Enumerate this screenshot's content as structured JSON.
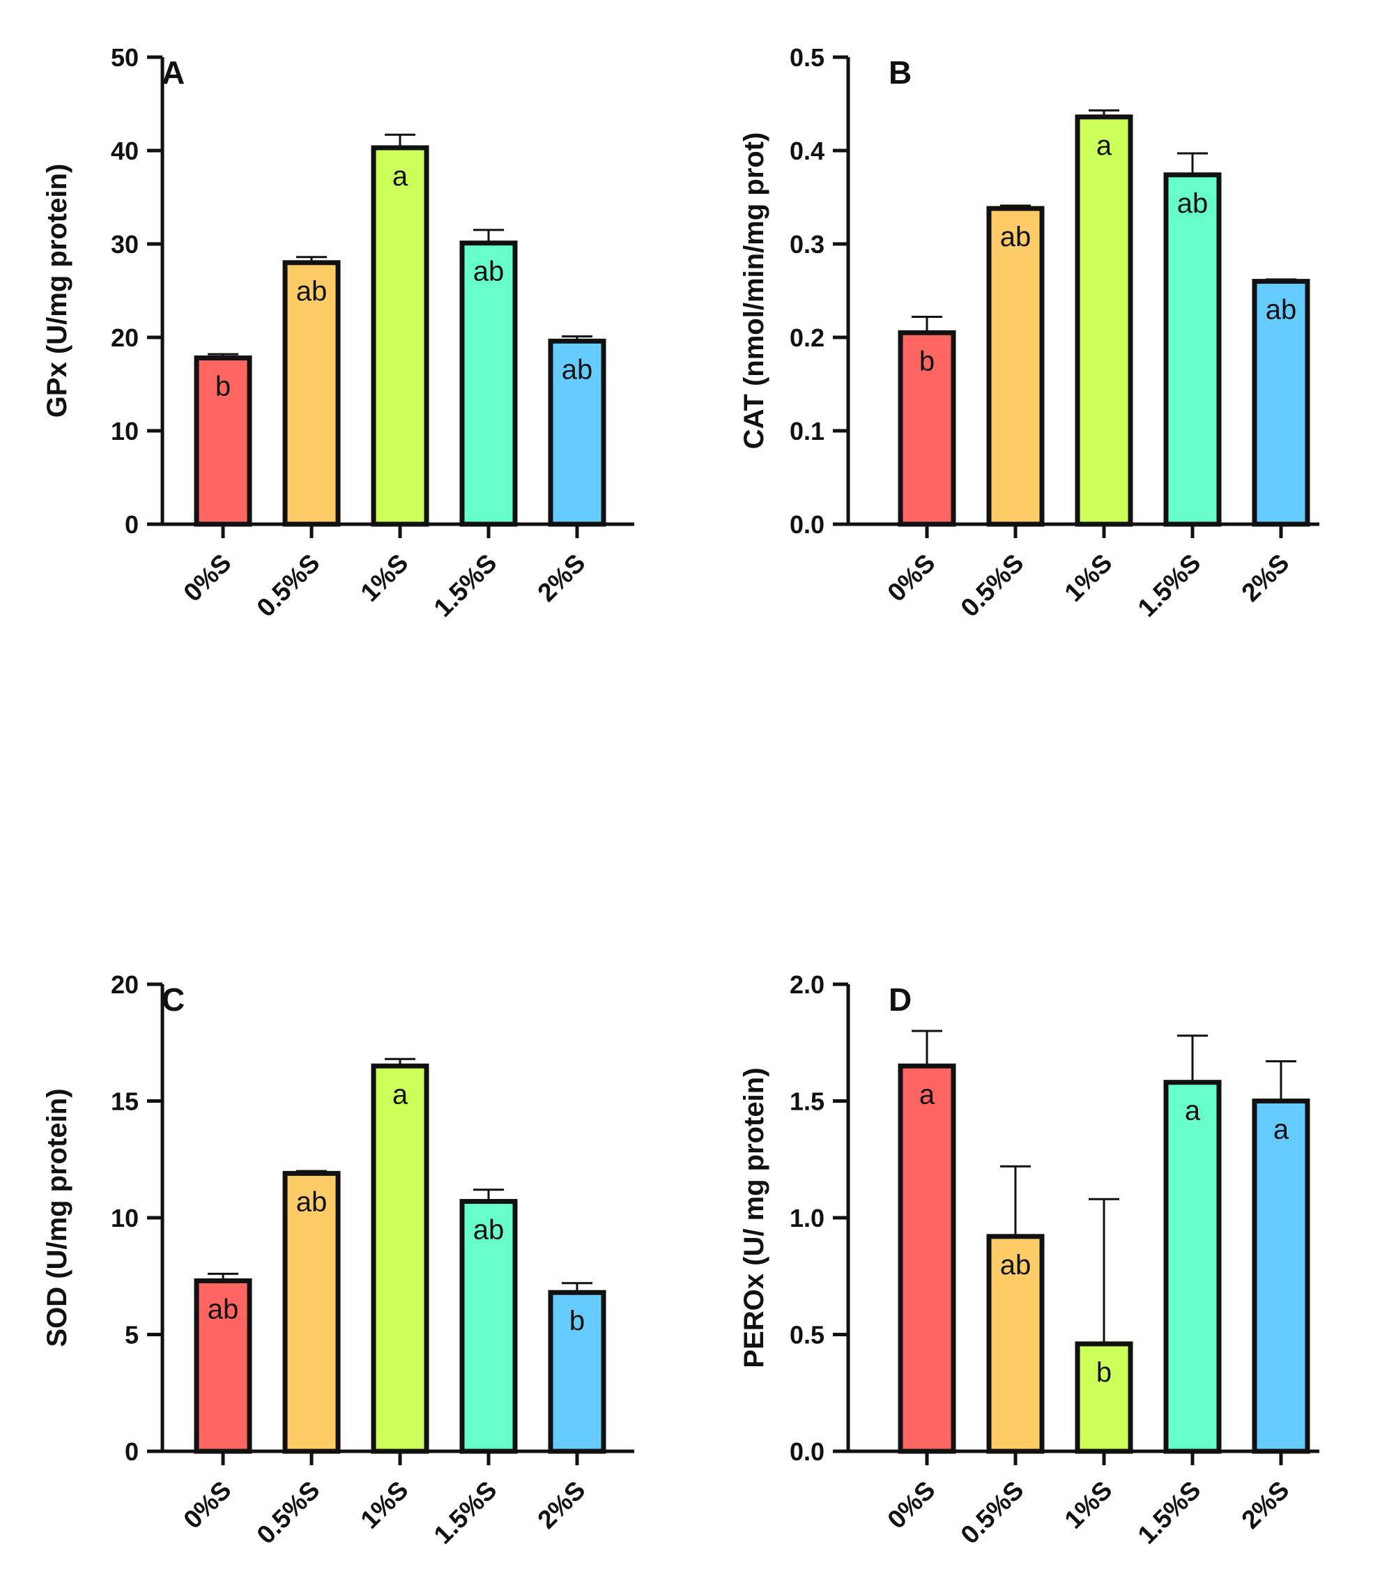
{
  "colors": {
    "0%S": "#ff6661",
    "0.5%S": "#fecc66",
    "1%S": "#ccff5a",
    "1.5%S": "#66ffcc",
    "2%S": "#66ccff",
    "frame": "#111111"
  },
  "chart_data": [
    {
      "type": "bar",
      "panel": "A",
      "ylabel": "GPx (U/mg protein)",
      "categories": [
        "0%S",
        "0.5%S",
        "1%S",
        "1.5%S",
        "2%S"
      ],
      "values": [
        17.8,
        28.0,
        40.3,
        30.1,
        19.6
      ],
      "errors": [
        0.4,
        0.6,
        1.4,
        1.4,
        0.5
      ],
      "significance": [
        "b",
        "ab",
        "a",
        "ab",
        "ab"
      ],
      "ylim": [
        0,
        50
      ],
      "yticks": [
        0,
        10,
        20,
        30,
        40,
        50
      ],
      "ytick_labels": [
        "0",
        "10",
        "20",
        "30",
        "40",
        "50"
      ]
    },
    {
      "type": "bar",
      "panel": "B",
      "ylabel": "CAT  (nmol/min/mg prot)",
      "categories": [
        "0%S",
        "0.5%S",
        "1%S",
        "1.5%S",
        "2%S"
      ],
      "values": [
        0.205,
        0.338,
        0.436,
        0.374,
        0.26
      ],
      "errors": [
        0.017,
        0.003,
        0.007,
        0.023,
        0.002
      ],
      "significance": [
        "b",
        "ab",
        "a",
        "ab",
        "ab"
      ],
      "ylim": [
        0,
        0.5
      ],
      "yticks": [
        0,
        0.1,
        0.2,
        0.3,
        0.4,
        0.5
      ],
      "ytick_labels": [
        "0.0",
        "0.1",
        "0.2",
        "0.3",
        "0.4",
        "0.5"
      ]
    },
    {
      "type": "bar",
      "panel": "C",
      "ylabel": "SOD (U/mg protein)",
      "categories": [
        "0%S",
        "0.5%S",
        "1%S",
        "1.5%S",
        "2%S"
      ],
      "values": [
        7.3,
        11.9,
        16.5,
        10.7,
        6.8
      ],
      "errors": [
        0.3,
        0.1,
        0.3,
        0.5,
        0.4
      ],
      "significance": [
        "ab",
        "ab",
        "a",
        "ab",
        "b"
      ],
      "ylim": [
        0,
        20
      ],
      "yticks": [
        0,
        5,
        10,
        15,
        20
      ],
      "ytick_labels": [
        "0",
        "5",
        "10",
        "15",
        "20"
      ]
    },
    {
      "type": "bar",
      "panel": "D",
      "ylabel": "PEROx (U/ mg protein)",
      "categories": [
        "0%S",
        "0.5%S",
        "1%S",
        "1.5%S",
        "2%S"
      ],
      "values": [
        1.65,
        0.92,
        0.46,
        1.58,
        1.5
      ],
      "errors": [
        0.15,
        0.3,
        0.62,
        0.2,
        0.17
      ],
      "significance": [
        "a",
        "ab",
        "b",
        "a",
        "a"
      ],
      "ylim": [
        0,
        2
      ],
      "yticks": [
        0,
        0.5,
        1,
        1.5,
        2
      ],
      "ytick_labels": [
        "0.0",
        "0.5",
        "1.0",
        "1.5",
        "2.0"
      ]
    }
  ]
}
